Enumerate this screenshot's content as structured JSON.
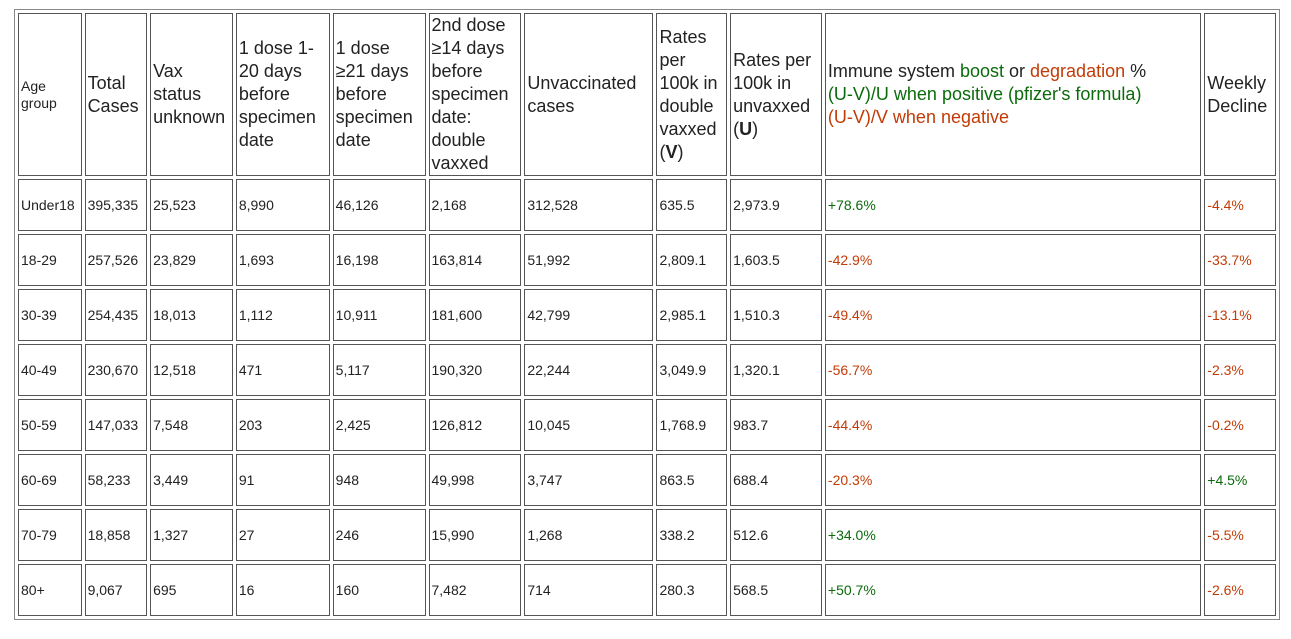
{
  "colors": {
    "positive": "#0b6b0b",
    "negative": "#c23b06",
    "text": "#222222",
    "border": "#555555"
  },
  "headers": {
    "age_group": "Age group",
    "total_cases": "Total Cases",
    "vax_unknown": "Vax status unknown",
    "dose1_1_20": "1 dose 1-20 days before specimen date",
    "dose1_21": "1 dose ≥21 days before specimen date",
    "dose2_14": "2nd dose ≥14 days before specimen date: double vaxxed",
    "unvaccinated": "Unvaccinated cases",
    "rate_vax_prefix": "Rates per 100k in double vaxxed (",
    "rate_vax_letter": "V",
    "rate_vax_suffix": ")",
    "rate_unvax_prefix": "Rates per 100k in unvaxxed (",
    "rate_unvax_letter": "U",
    "rate_unvax_suffix": ")",
    "immune_title_1": "Immune system ",
    "immune_boost": "boost",
    "immune_or": " or ",
    "immune_degradation": "degradation",
    "immune_pct": " %",
    "immune_formula_pos": "(U-V)/U when positive (pfizer's formula)",
    "immune_formula_neg": "(U-V)/V when negative",
    "weekly_decline": "Weekly Decline"
  },
  "rows": [
    {
      "age": "Under18",
      "total": "395,335",
      "unknown": "25,523",
      "d1a": "8,990",
      "d1b": "46,126",
      "d2": "2,168",
      "unvax": "312,528",
      "rate_v": "635.5",
      "rate_u": "2,973.9",
      "immune": "+78.6%",
      "weekly": "-4.4%"
    },
    {
      "age": "18-29",
      "total": "257,526",
      "unknown": "23,829",
      "d1a": "1,693",
      "d1b": "16,198",
      "d2": "163,814",
      "unvax": "51,992",
      "rate_v": "2,809.1",
      "rate_u": "1,603.5",
      "immune": "-42.9%",
      "weekly": "-33.7%"
    },
    {
      "age": "30-39",
      "total": "254,435",
      "unknown": "18,013",
      "d1a": "1,112",
      "d1b": "10,911",
      "d2": "181,600",
      "unvax": "42,799",
      "rate_v": "2,985.1",
      "rate_u": "1,510.3",
      "immune": "-49.4%",
      "weekly": "-13.1%"
    },
    {
      "age": "40-49",
      "total": "230,670",
      "unknown": "12,518",
      "d1a": "471",
      "d1b": "5,117",
      "d2": "190,320",
      "unvax": "22,244",
      "rate_v": "3,049.9",
      "rate_u": "1,320.1",
      "immune": "-56.7%",
      "weekly": "-2.3%"
    },
    {
      "age": "50-59",
      "total": "147,033",
      "unknown": "7,548",
      "d1a": "203",
      "d1b": "2,425",
      "d2": "126,812",
      "unvax": "10,045",
      "rate_v": "1,768.9",
      "rate_u": "983.7",
      "immune": "-44.4%",
      "weekly": "-0.2%"
    },
    {
      "age": "60-69",
      "total": "58,233",
      "unknown": "3,449",
      "d1a": "91",
      "d1b": "948",
      "d2": "49,998",
      "unvax": "3,747",
      "rate_v": "863.5",
      "rate_u": "688.4",
      "immune": "-20.3%",
      "weekly": "+4.5%"
    },
    {
      "age": "70-79",
      "total": "18,858",
      "unknown": "1,327",
      "d1a": "27",
      "d1b": "246",
      "d2": "15,990",
      "unvax": "1,268",
      "rate_v": "338.2",
      "rate_u": "512.6",
      "immune": "+34.0%",
      "weekly": "-5.5%"
    },
    {
      "age": "80+",
      "total": "9,067",
      "unknown": "695",
      "d1a": "16",
      "d1b": "160",
      "d2": "7,482",
      "unvax": "714",
      "rate_v": "280.3",
      "rate_u": "568.5",
      "immune": "+50.7%",
      "weekly": "-2.6%"
    }
  ]
}
